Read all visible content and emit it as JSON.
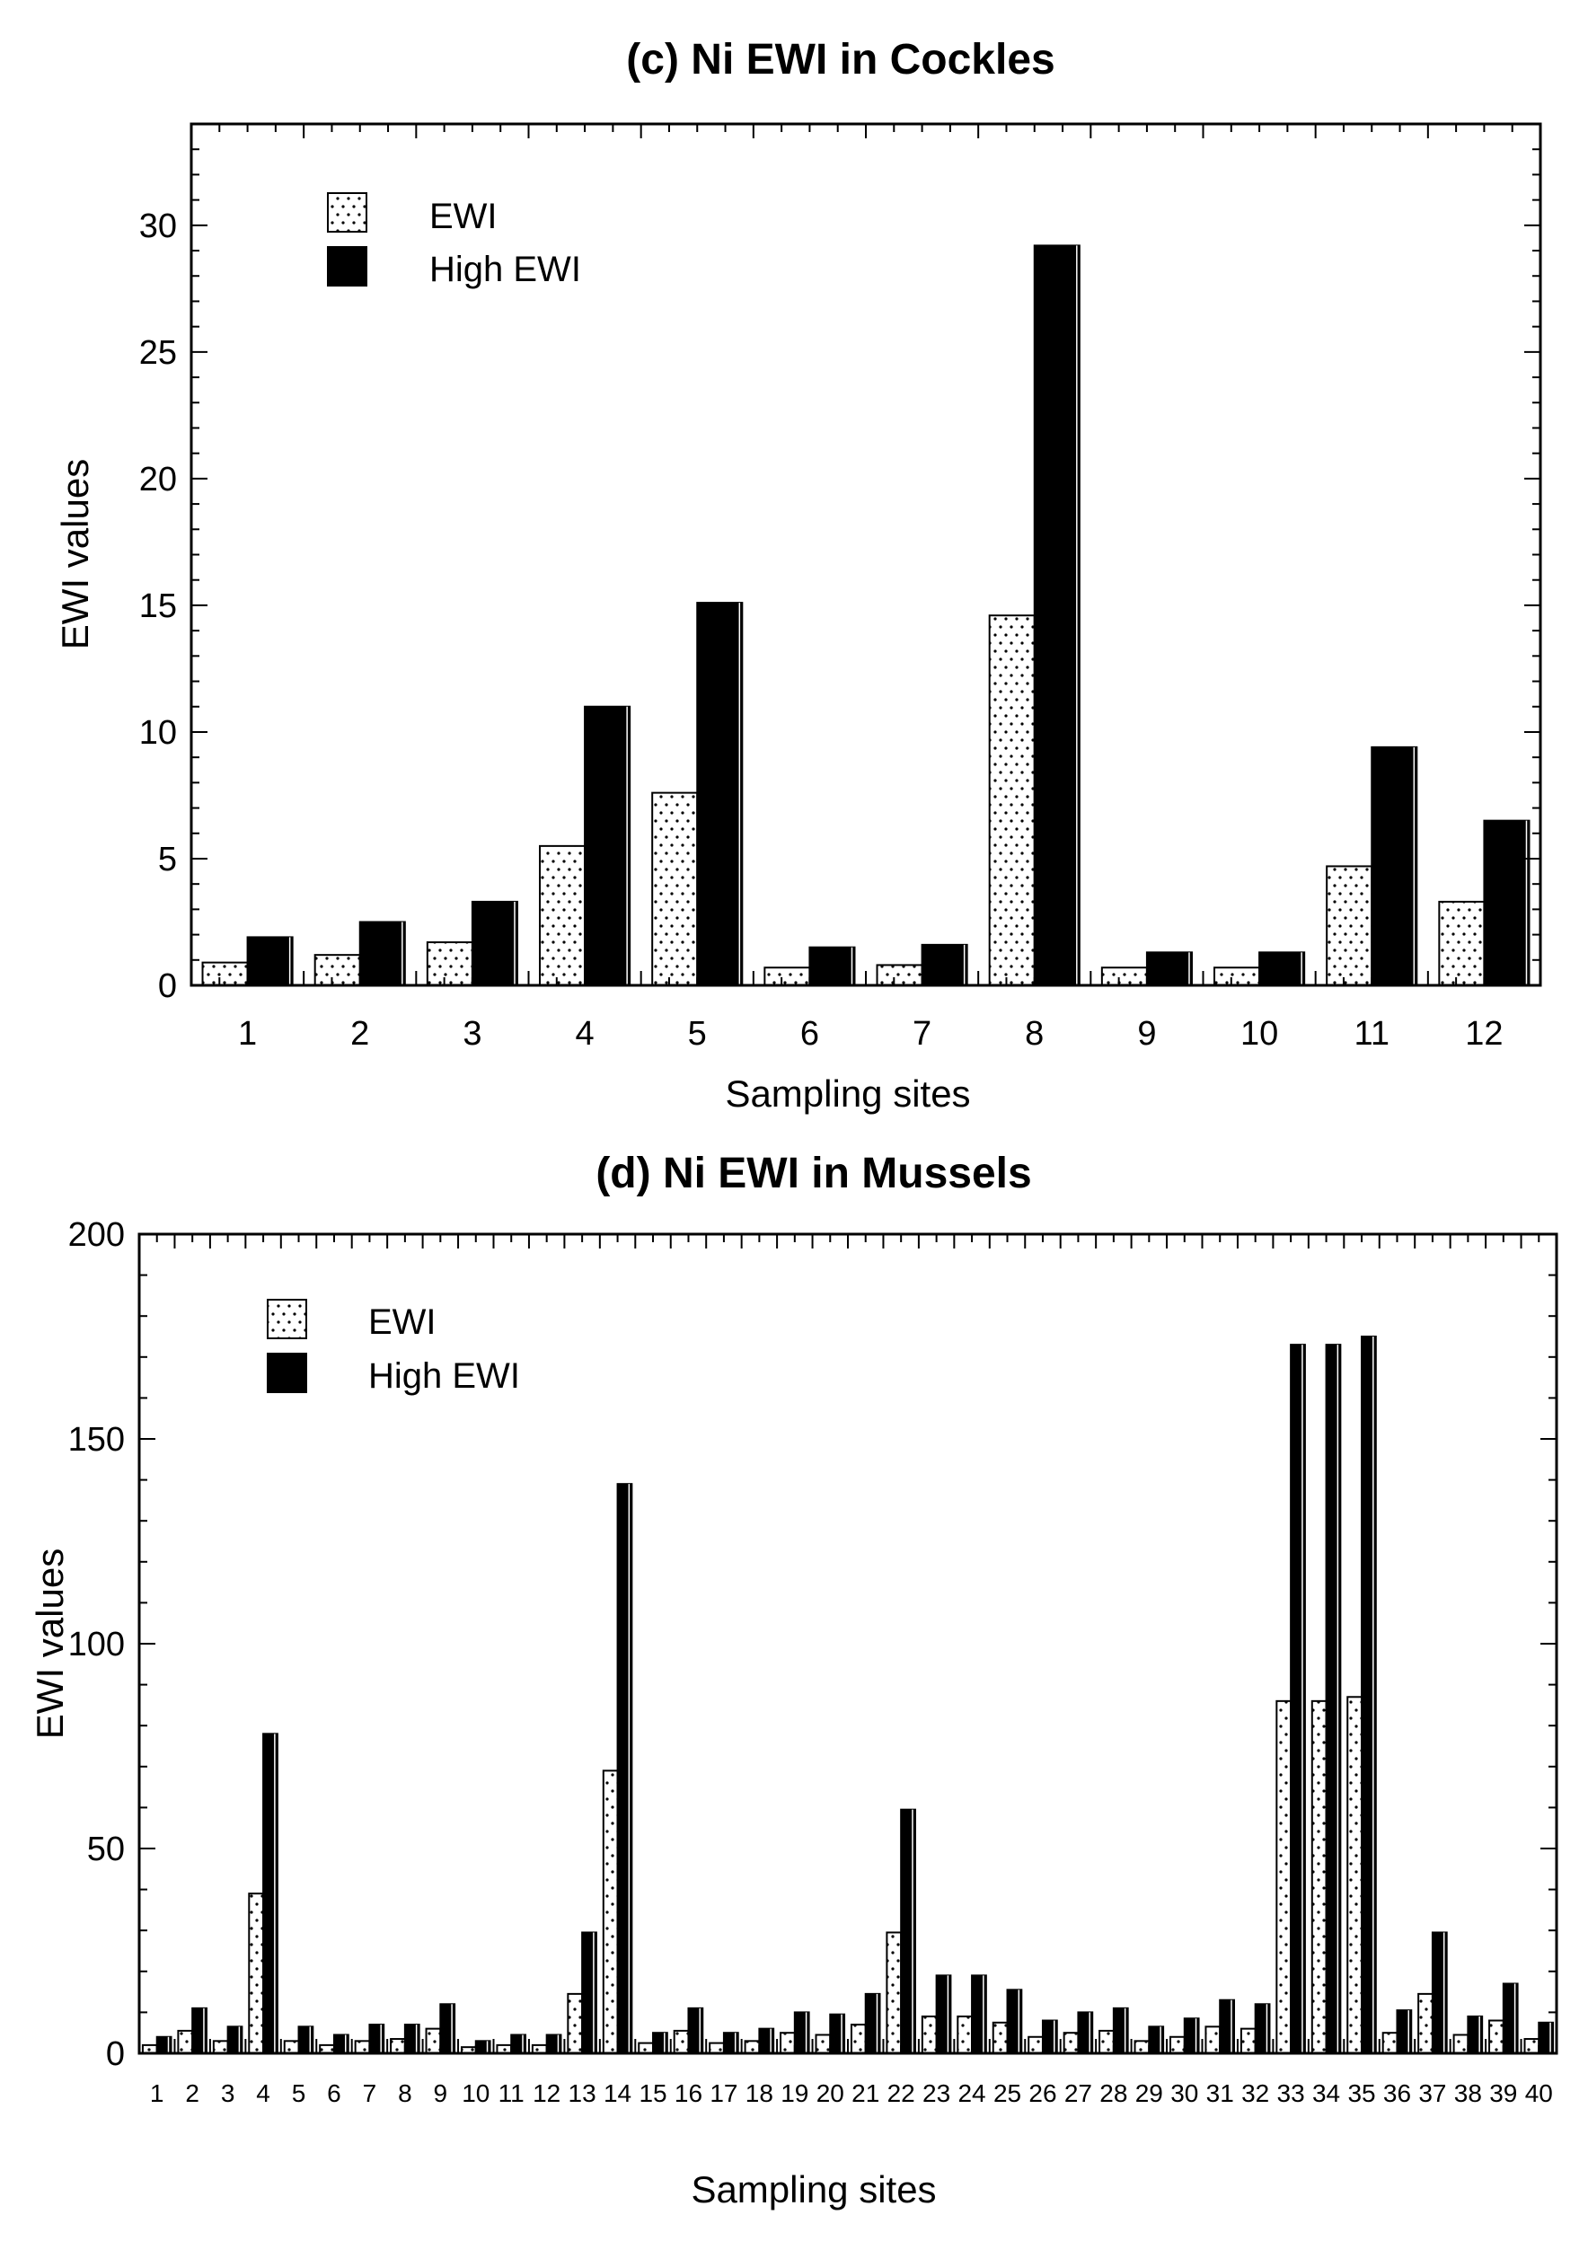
{
  "chart_data": [
    {
      "id": "c",
      "type": "bar",
      "title": "(c) Ni EWI in Cockles",
      "xlabel": "Sampling sites",
      "ylabel": "EWI values",
      "ylim": [
        0,
        34
      ],
      "yticks": [
        0,
        5,
        10,
        15,
        20,
        25,
        30
      ],
      "grid": false,
      "legend_position": "top-left",
      "categories": [
        "1",
        "2",
        "3",
        "4",
        "5",
        "6",
        "7",
        "8",
        "9",
        "10",
        "11",
        "12"
      ],
      "series": [
        {
          "name": "EWI",
          "pattern": "dotted",
          "values": [
            0.9,
            1.2,
            1.7,
            5.5,
            7.6,
            0.7,
            0.8,
            14.6,
            0.7,
            0.7,
            4.7,
            3.3
          ]
        },
        {
          "name": "High EWI",
          "pattern": "solid",
          "values": [
            1.9,
            2.5,
            3.3,
            11.0,
            15.1,
            1.5,
            1.6,
            29.2,
            1.3,
            1.3,
            9.4,
            6.5
          ]
        }
      ]
    },
    {
      "id": "d",
      "type": "bar",
      "title": "(d) Ni EWI in Mussels",
      "xlabel": "Sampling sites",
      "ylabel": "EWI  values",
      "ylim": [
        0,
        200
      ],
      "yticks": [
        0,
        50,
        100,
        150,
        200
      ],
      "grid": false,
      "legend_position": "top-left",
      "categories": [
        "1",
        "2",
        "3",
        "4",
        "5",
        "6",
        "7",
        "8",
        "9",
        "10",
        "11",
        "12",
        "13",
        "14",
        "15",
        "16",
        "17",
        "18",
        "19",
        "20",
        "21",
        "22",
        "23",
        "24",
        "25",
        "26",
        "27",
        "28",
        "29",
        "30",
        "31",
        "32",
        "33",
        "34",
        "35",
        "36",
        "37",
        "38",
        "39",
        "40"
      ],
      "series": [
        {
          "name": "EWI",
          "pattern": "dotted",
          "values": [
            2,
            5.5,
            3,
            39,
            3,
            2,
            3,
            3.5,
            6,
            1.5,
            2,
            2,
            14.5,
            69,
            2.5,
            5.5,
            2.5,
            3,
            5,
            4.5,
            7,
            29.5,
            9,
            9,
            7.5,
            4,
            5,
            5.5,
            3,
            4,
            6.5,
            6,
            86,
            86,
            87,
            5,
            14.5,
            4.5,
            8,
            3.5
          ]
        },
        {
          "name": "High EWI",
          "pattern": "solid",
          "values": [
            4,
            11,
            6.5,
            78,
            6.5,
            4.5,
            7,
            7,
            12,
            3,
            4.5,
            4.5,
            29.5,
            139,
            5,
            11,
            5,
            6,
            10,
            9.5,
            14.5,
            59.5,
            19,
            19,
            15.5,
            8,
            10,
            11,
            6.5,
            8.5,
            13,
            12,
            173,
            173,
            175,
            10.5,
            29.5,
            9,
            17,
            7.5
          ]
        }
      ]
    }
  ]
}
